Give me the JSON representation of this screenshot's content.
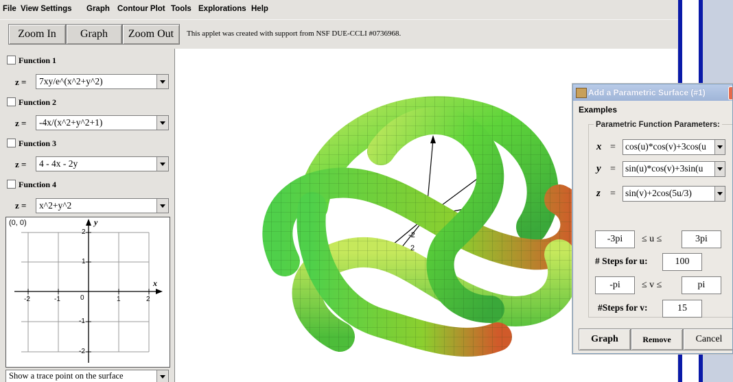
{
  "menubar": {
    "items": [
      "File",
      "View Settings",
      "Graph",
      "Contour Plot",
      "Tools",
      "Explorations",
      "Help"
    ]
  },
  "toolbar": {
    "zoom_in": "Zoom In",
    "graph": "Graph",
    "zoom_out": "Zoom Out",
    "note": "This applet was created with support from NSF DUE-CCLI #0736968."
  },
  "functions": [
    {
      "label": "Function 1",
      "z_label": "z =",
      "expression": "7xy/e^(x^2+y^2)"
    },
    {
      "label": "Function 2",
      "z_label": "z =",
      "expression": "-4x/(x^2+y^2+1)"
    },
    {
      "label": "Function 3",
      "z_label": "z =",
      "expression": "4 - 4x - 2y"
    },
    {
      "label": "Function 4",
      "z_label": "z =",
      "expression": "x^2+y^2"
    }
  ],
  "mini_graph": {
    "coord_readout": "(0, 0)",
    "x_axis": "x",
    "y_axis": "y",
    "x_ticks": [
      "-2",
      "-1",
      "0",
      "1",
      "2"
    ],
    "y_ticks": [
      "2",
      "1",
      "-1",
      "-2"
    ]
  },
  "trace_option": "Show a trace point on the surface",
  "canvas": {
    "axis_labels": [
      "-2",
      "2"
    ]
  },
  "dialog": {
    "title": "Add a Parametric Surface (#1)",
    "menu": "Examples",
    "group_title": "Parametric Function Parameters:",
    "x_var": "x",
    "y_var": "y",
    "z_var": "z",
    "equals": "=",
    "x_expr": "cos(u)*cos(v)+3cos(u",
    "y_expr": "sin(u)*cos(v)+3sin(u",
    "z_expr": "sin(v)+2cos(5u/3)",
    "u_min": "-3pi",
    "u_max": "3pi",
    "u_range_label": "≤ u ≤",
    "u_steps_label": "# Steps for u:",
    "u_steps": "100",
    "v_min": "-pi",
    "v_max": "pi",
    "v_range_label": "≤ v ≤",
    "v_steps_label": "#Steps for v:",
    "v_steps": "15",
    "graph_button": "Graph",
    "remove_button": "Remove",
    "cancel_button": "Cancel",
    "close_glyph": "✕"
  }
}
